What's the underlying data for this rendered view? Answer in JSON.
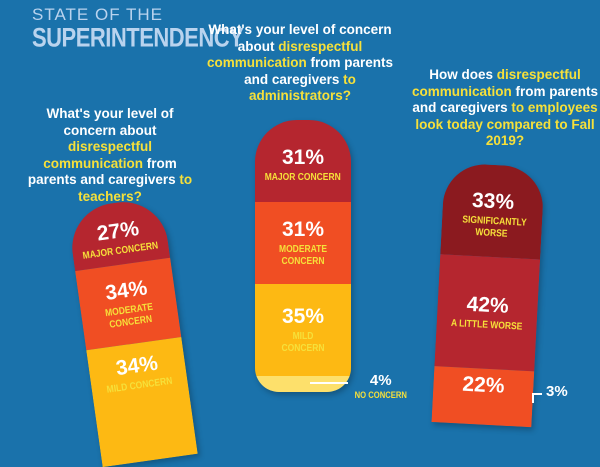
{
  "brand": {
    "line1": "STATE OF THE",
    "line2": "SUPERINTENDENCY"
  },
  "colors": {
    "background": "#1a72ab",
    "major": "#b5262f",
    "moderate": "#f04e23",
    "mild": "#fdb913",
    "none": "#fde06b",
    "significantly_worse": "#8b1a1f",
    "highlight": "#f6e03a"
  },
  "chart_data": [
    {
      "type": "bar",
      "title": {
        "pre": "What's your level of concern about ",
        "hl1": "disrespectful communication",
        "mid": " from parents and caregivers ",
        "hl2": "to teachers?"
      },
      "categories": [
        "MAJOR CONCERN",
        "MODERATE CONCERN",
        "MILD CONCERN"
      ],
      "values": [
        27,
        34,
        34
      ],
      "labels": [
        "27%",
        "34%",
        "34%"
      ]
    },
    {
      "type": "bar",
      "title": {
        "pre": "What's your level of concern about ",
        "hl1": "disrespectful communication",
        "mid": " from parents and caregivers ",
        "hl2": "to administrators?"
      },
      "categories": [
        "MAJOR CONCERN",
        "MODERATE CONCERN",
        "MILD CONCERN",
        "NO CONCERN"
      ],
      "values": [
        31,
        31,
        35,
        4
      ],
      "labels": [
        "31%",
        "31%",
        "35%",
        "4%"
      ]
    },
    {
      "type": "bar",
      "title": {
        "pre": "How does ",
        "hl1": "disrespectful communication",
        "mid": " from parents and caregivers ",
        "hl2": "to employees look today compared to Fall 2019?"
      },
      "categories": [
        "SIGNIFICANTLY WORSE",
        "A LITTLE WORSE",
        "",
        ""
      ],
      "values": [
        33,
        42,
        22,
        3
      ],
      "labels": [
        "33%",
        "42%",
        "22%",
        "3%"
      ]
    }
  ]
}
